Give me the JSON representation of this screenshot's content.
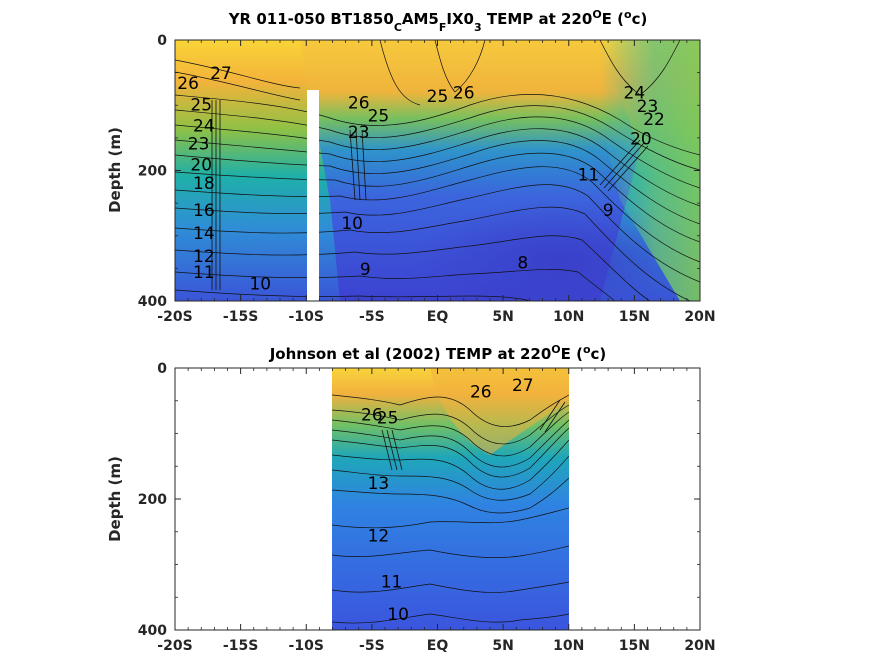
{
  "chart_data": [
    {
      "type": "contour",
      "title_parts": {
        "a": "YR 011-050 BT1850",
        "s1": "C",
        "b": "AM5",
        "s2": "F",
        "c": "IX0",
        "s3": "3",
        "d": " TEMP at 220",
        "sup1": "O",
        "e": "E (",
        "sup2": "o",
        "f": "c)"
      },
      "ylabel": "Depth (m)",
      "xlim": [
        -20,
        20
      ],
      "ylim": [
        0,
        400
      ],
      "y_reversed": true,
      "x_ticks": [
        -20,
        -15,
        -10,
        -5,
        0,
        5,
        10,
        15,
        20
      ],
      "x_tick_labels": [
        "-20S",
        "-15S",
        "-10S",
        "-5S",
        "EQ",
        "5N",
        "10N",
        "15N",
        "20N"
      ],
      "y_ticks": [
        0,
        200,
        400
      ],
      "y_tick_labels": [
        "0",
        "200",
        "400"
      ],
      "data_x_range": [
        -20,
        20
      ],
      "masked_column": {
        "lat": -10,
        "depth_from": 80,
        "depth_to": 400
      },
      "contour_labels": [
        {
          "lat": -16.5,
          "depth": 60,
          "value": "27"
        },
        {
          "lat": -19,
          "depth": 75,
          "value": "26"
        },
        {
          "lat": -18,
          "depth": 108,
          "value": "25"
        },
        {
          "lat": -17.8,
          "depth": 140,
          "value": "24"
        },
        {
          "lat": -18.2,
          "depth": 168,
          "value": "23"
        },
        {
          "lat": -18,
          "depth": 200,
          "value": "20"
        },
        {
          "lat": -17.8,
          "depth": 228,
          "value": "18"
        },
        {
          "lat": -17.8,
          "depth": 270,
          "value": "16"
        },
        {
          "lat": -17.8,
          "depth": 305,
          "value": "14"
        },
        {
          "lat": -17.8,
          "depth": 340,
          "value": "12"
        },
        {
          "lat": -17.8,
          "depth": 365,
          "value": "11"
        },
        {
          "lat": -13.5,
          "depth": 382,
          "value": "10"
        },
        {
          "lat": -6,
          "depth": 105,
          "value": "26"
        },
        {
          "lat": -4.5,
          "depth": 125,
          "value": "25"
        },
        {
          "lat": -6,
          "depth": 150,
          "value": "23"
        },
        {
          "lat": -6.5,
          "depth": 290,
          "value": "10"
        },
        {
          "lat": -5.5,
          "depth": 360,
          "value": "9"
        },
        {
          "lat": 2,
          "depth": 90,
          "value": "26"
        },
        {
          "lat": 0,
          "depth": 95,
          "value": "25"
        },
        {
          "lat": 6.5,
          "depth": 350,
          "value": "8"
        },
        {
          "lat": 15,
          "depth": 90,
          "value": "24"
        },
        {
          "lat": 16,
          "depth": 110,
          "value": "23"
        },
        {
          "lat": 16.5,
          "depth": 130,
          "value": "22"
        },
        {
          "lat": 15.5,
          "depth": 160,
          "value": "20"
        },
        {
          "lat": 11.5,
          "depth": 215,
          "value": "11"
        },
        {
          "lat": 13,
          "depth": 270,
          "value": "9"
        }
      ]
    },
    {
      "type": "contour",
      "title_parts": {
        "a": "Johnson et al (2002) TEMP at 220",
        "sup1": "O",
        "e": "E (",
        "sup2": "o",
        "f": "c)"
      },
      "ylabel": "Depth (m)",
      "xlim": [
        -20,
        20
      ],
      "ylim": [
        0,
        400
      ],
      "y_reversed": true,
      "x_ticks": [
        -20,
        -15,
        -10,
        -5,
        0,
        5,
        10,
        15,
        20
      ],
      "x_tick_labels": [
        "-20S",
        "-15S",
        "-10S",
        "-5S",
        "EQ",
        "5N",
        "10N",
        "15N",
        "20N"
      ],
      "y_ticks": [
        0,
        200,
        400
      ],
      "y_tick_labels": [
        "0",
        "200",
        "400"
      ],
      "data_x_range": [
        -8,
        10
      ],
      "contour_labels": [
        {
          "lat": 3.3,
          "depth": 45,
          "value": "26"
        },
        {
          "lat": 6.5,
          "depth": 35,
          "value": "27"
        },
        {
          "lat": -5,
          "depth": 80,
          "value": "26"
        },
        {
          "lat": -3.8,
          "depth": 85,
          "value": "25"
        },
        {
          "lat": -4.5,
          "depth": 185,
          "value": "13"
        },
        {
          "lat": -4.5,
          "depth": 265,
          "value": "12"
        },
        {
          "lat": -3.5,
          "depth": 335,
          "value": "11"
        },
        {
          "lat": -3,
          "depth": 385,
          "value": "10"
        }
      ]
    }
  ]
}
